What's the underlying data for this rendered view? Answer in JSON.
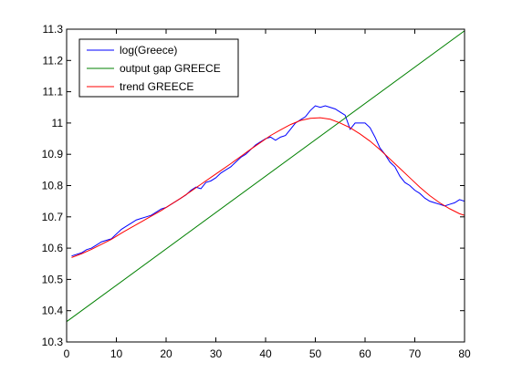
{
  "chart_data": {
    "type": "line",
    "title": "",
    "xlabel": "",
    "ylabel": "",
    "xlim": [
      0,
      80
    ],
    "ylim": [
      10.3,
      11.3
    ],
    "x_ticks": [
      0,
      10,
      20,
      30,
      40,
      50,
      60,
      70,
      80
    ],
    "y_ticks": [
      10.3,
      10.4,
      10.5,
      10.6,
      10.7,
      10.8,
      10.9,
      11.0,
      11.1,
      11.2,
      11.3
    ],
    "x_tick_labels": [
      "0",
      "10",
      "20",
      "30",
      "40",
      "50",
      "60",
      "70",
      "80"
    ],
    "y_tick_labels": [
      "10.3",
      "10.4",
      "10.5",
      "10.6",
      "10.7",
      "10.8",
      "10.9",
      "11",
      "11.1",
      "11.2",
      "11.3"
    ],
    "grid": false,
    "legend_position": "top-left",
    "series": [
      {
        "name": "log(Greece)",
        "color": "#0000ff",
        "x": [
          1,
          2,
          3,
          4,
          5,
          6,
          7,
          8,
          9,
          10,
          11,
          12,
          13,
          14,
          15,
          16,
          17,
          18,
          19,
          20,
          21,
          22,
          23,
          24,
          25,
          26,
          27,
          28,
          29,
          30,
          31,
          32,
          33,
          34,
          35,
          36,
          37,
          38,
          39,
          40,
          41,
          42,
          43,
          44,
          45,
          46,
          47,
          48,
          49,
          50,
          51,
          52,
          53,
          54,
          55,
          56,
          57,
          58,
          59,
          60,
          61,
          62,
          63,
          64,
          65,
          66,
          67,
          68,
          69,
          70,
          71,
          72,
          73,
          74,
          75,
          76,
          77,
          78,
          79,
          80
        ],
        "y": [
          10.575,
          10.58,
          10.585,
          10.595,
          10.6,
          10.61,
          10.62,
          10.625,
          10.63,
          10.645,
          10.66,
          10.67,
          10.68,
          10.69,
          10.695,
          10.7,
          10.705,
          10.715,
          10.725,
          10.73,
          10.74,
          10.75,
          10.76,
          10.77,
          10.785,
          10.795,
          10.79,
          10.81,
          10.815,
          10.825,
          10.84,
          10.85,
          10.86,
          10.875,
          10.89,
          10.9,
          10.915,
          10.93,
          10.94,
          10.95,
          10.955,
          10.945,
          10.955,
          10.96,
          10.98,
          11.0,
          11.01,
          11.02,
          11.04,
          11.055,
          11.05,
          11.055,
          11.05,
          11.045,
          11.035,
          11.025,
          10.98,
          11.0,
          11.0,
          11.0,
          10.985,
          10.955,
          10.92,
          10.9,
          10.875,
          10.86,
          10.83,
          10.81,
          10.8,
          10.785,
          10.775,
          10.76,
          10.75,
          10.745,
          10.74,
          10.735,
          10.74,
          10.745,
          10.755,
          10.75
        ]
      },
      {
        "name": "output gap GREECE",
        "color": "#008000",
        "x": [
          0,
          80
        ],
        "y": [
          10.365,
          11.295
        ]
      },
      {
        "name": "trend GREECE",
        "color": "#ff0000",
        "x": [
          1,
          3,
          5,
          7,
          9,
          11,
          13,
          15,
          17,
          19,
          21,
          23,
          25,
          27,
          29,
          31,
          33,
          35,
          37,
          39,
          41,
          43,
          45,
          47,
          49,
          51,
          53,
          55,
          57,
          59,
          61,
          63,
          65,
          67,
          69,
          71,
          73,
          75,
          77,
          79,
          80
        ],
        "y": [
          10.57,
          10.582,
          10.596,
          10.612,
          10.628,
          10.648,
          10.666,
          10.684,
          10.702,
          10.72,
          10.74,
          10.76,
          10.782,
          10.804,
          10.826,
          10.848,
          10.87,
          10.893,
          10.916,
          10.938,
          10.96,
          10.978,
          10.995,
          11.008,
          11.015,
          11.017,
          11.012,
          11.0,
          10.985,
          10.965,
          10.942,
          10.915,
          10.885,
          10.855,
          10.825,
          10.795,
          10.768,
          10.745,
          10.726,
          10.71,
          10.705
        ]
      }
    ]
  }
}
